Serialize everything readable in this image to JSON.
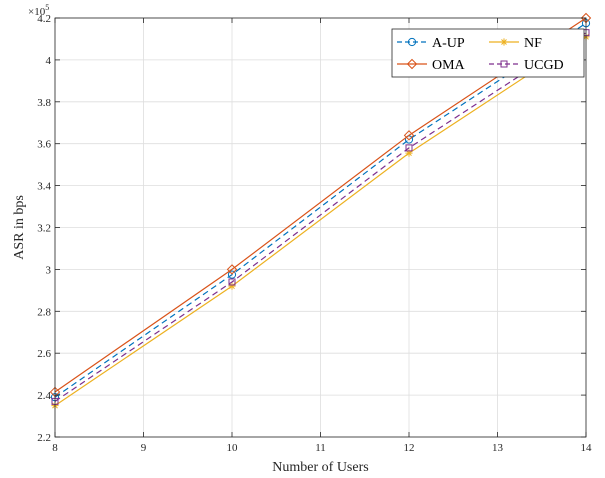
{
  "chart_data": {
    "type": "line",
    "xlabel": "Number of Users",
    "ylabel": "ASR in bps",
    "x": [
      8,
      10,
      12,
      14
    ],
    "xlim": [
      8,
      14
    ],
    "ylim": [
      2.2,
      4.2
    ],
    "y_multiplier_label": "×10",
    "y_multiplier_exponent": "5",
    "xticks": [
      8,
      9,
      10,
      11,
      12,
      13,
      14
    ],
    "xtick_labels": [
      "8",
      "9",
      "10",
      "11",
      "12",
      "13",
      "14"
    ],
    "yticks": [
      2.2,
      2.4,
      2.6,
      2.8,
      3.0,
      3.2,
      3.4,
      3.6,
      3.8,
      4.0,
      4.2
    ],
    "ytick_labels": [
      "2.2",
      "2.4",
      "2.6",
      "2.8",
      "3",
      "3.2",
      "3.4",
      "3.6",
      "3.8",
      "4",
      "4.2"
    ],
    "grid": true,
    "legend_position": "top-right",
    "series": [
      {
        "name": "A-UP",
        "color": "#0072BD",
        "marker": "circle",
        "dash": "6,4",
        "values": [
          2.39,
          2.975,
          3.62,
          4.175
        ]
      },
      {
        "name": "NF",
        "color": "#EDB120",
        "marker": "star",
        "dash": "",
        "values": [
          2.35,
          2.92,
          3.555,
          4.11
        ]
      },
      {
        "name": "OMA",
        "color": "#D95319",
        "marker": "diamond",
        "dash": "",
        "values": [
          2.415,
          3.0,
          3.64,
          4.2
        ]
      },
      {
        "name": "UCGD",
        "color": "#7E2F8E",
        "marker": "square",
        "dash": "6,4",
        "values": [
          2.37,
          2.94,
          3.58,
          4.13
        ]
      }
    ]
  }
}
